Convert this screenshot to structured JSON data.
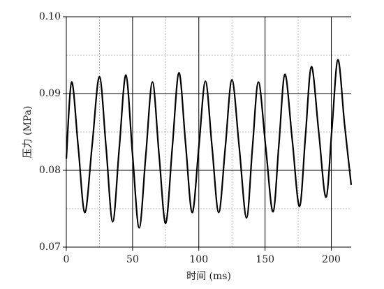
{
  "chart_data": {
    "type": "line",
    "x_label": "时间 (ms)",
    "y_label": "压力 (MPa)",
    "xlim": [
      0,
      215
    ],
    "ylim": [
      0.07,
      0.1
    ],
    "xticks": [
      0,
      50,
      100,
      150,
      200
    ],
    "yticks": [
      0.07,
      0.08,
      0.09,
      {
        "value": 0.1,
        "label": "0.10"
      }
    ],
    "xminor": [
      25,
      75,
      125,
      175
    ],
    "yminor": [
      0.075,
      0.085,
      0.095
    ],
    "grid": true,
    "smooth": true,
    "series": [
      {
        "color": "#000000",
        "x": [
          0,
          4,
          9,
          14,
          19.5,
          25,
          30,
          35,
          40,
          45,
          50,
          55,
          60,
          65,
          70,
          75,
          80,
          85,
          90,
          95,
          100,
          105,
          110,
          115,
          120,
          125,
          130.5,
          136,
          140.5,
          145,
          150.5,
          156,
          160.5,
          165,
          170.5,
          176,
          180.5,
          185,
          190.5,
          196,
          200.5,
          205,
          210,
          215
        ],
        "values": [
          0.0815,
          0.0915,
          0.083,
          0.0745,
          0.0833,
          0.0922,
          0.083,
          0.0733,
          0.083,
          0.0924,
          0.082,
          0.0725,
          0.082,
          0.0915,
          0.082,
          0.0731,
          0.083,
          0.0927,
          0.0835,
          0.0745,
          0.083,
          0.0916,
          0.083,
          0.0745,
          0.083,
          0.0918,
          0.083,
          0.0738,
          0.083,
          0.0915,
          0.083,
          0.0746,
          0.0835,
          0.0925,
          0.084,
          0.0753,
          0.0845,
          0.0935,
          0.085,
          0.0765,
          0.0855,
          0.0944,
          0.086,
          0.0781
        ]
      }
    ]
  }
}
